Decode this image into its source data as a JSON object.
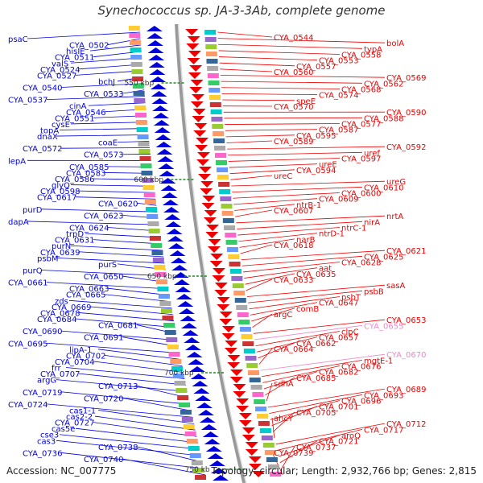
{
  "title": "Synechococcus sp. JA-3-3Ab, complete genome",
  "accession": "Accession: NC_007775",
  "topology": "Topology: circular; Length: 2,932,766 bp; Genes: 2,815",
  "colors": {
    "left_strand": "#0000dd",
    "right_strand": "#ee0000",
    "highlight": "#ee88cc",
    "backbone": "#999999",
    "scale_mark": "#228822"
  },
  "scale_labels": [
    "550 kbp",
    "600 kbp",
    "650 kbp",
    "700 kbp",
    "750 kb"
  ],
  "left_genes": [
    "psaC",
    "CYA_0502",
    "hisIE",
    "CYA_0511",
    "valS",
    "CYA_0524",
    "CYA_0527",
    "bchJ",
    "CYA_0540",
    "CYA_0533",
    "CYA_0537",
    "cinA",
    "CYA_0546",
    "CYA_0551",
    "cysE",
    "topA",
    "dnaX",
    "coaE",
    "CYA_0572",
    "CYA_0573",
    "lepA",
    "CYA_0585",
    "CYA_0583",
    "CYA_0586",
    "glyQ",
    "CYA_0598",
    "CYA_0617",
    "CYA_0620",
    "purD",
    "CYA_0623",
    "dapA",
    "CYA_0624",
    "trpD",
    "CYA_0631",
    "purN",
    "CYA_0639",
    "psbM",
    "purS",
    "purQ",
    "CYA_0650",
    "CYA_0661",
    "CYA_0663",
    "CYA_0665",
    "zds",
    "CYA_0669",
    "CYA_0678",
    "CYA_0684",
    "CYA_0681",
    "CYA_0690",
    "CYA_0691",
    "CYA_0695",
    "lipA-1",
    "CYA_0702",
    "CYA_0704",
    "frr",
    "CYA_0707",
    "argG",
    "CYA_0713",
    "CYA_0719",
    "CYA_0720",
    "CYA_0724",
    "cas1-1",
    "cas2-2",
    "CYA_0727",
    "cas5e",
    "cse3",
    "cas3",
    "CYA_0738",
    "CYA_0736",
    "CYA_0740"
  ],
  "right_genes": [
    "CYA_0544",
    "bolA",
    "typA",
    "CYA_0558",
    "CYA_0553",
    "CYA_0557",
    "CYA_0560",
    "CYA_0569",
    "CYA_0562",
    "CYA_0568",
    "CYA_0574",
    "speE",
    "CYA_0570",
    "CYA_0590",
    "CYA_0588",
    "CYA_0577",
    "CYA_0587",
    "CYA_0595",
    "CYA_0589",
    "CYA_0592",
    "uref",
    "CYA_0597",
    "ureE",
    "CYA_0594",
    "ureC",
    "ureG",
    "CYA_0610",
    "CYA_0600",
    "CYA_0609",
    "ntrB-1",
    "CYA_0607",
    "nrtA",
    "nirA",
    "ntrC-1",
    "ntrD-1",
    "narB",
    "CYA_0618",
    "CYA_0621",
    "CYA_0625",
    "CYA_0628",
    "aat",
    "CYA_0635",
    "CYA_0633",
    "sasA",
    "psbB",
    "psbT",
    "CYA_0647",
    "comB",
    "argC",
    "CYA_0653",
    "CYA_0655",
    "clpC",
    "CYA_0657",
    "CYA_0662",
    "CYA_0664",
    "CYA_0670",
    "mgtE-1",
    "CYA_0676",
    "CYA_0682",
    "CYA_0685",
    "sdhA",
    "CYA_0689",
    "CYA_0693",
    "CYA_0696",
    "CYA_0701",
    "CYA_0705",
    "ahcY",
    "CYA_0712",
    "CYA_0717",
    "aroQ",
    "CYA_0721",
    "CYA_0737",
    "CYA_0739"
  ]
}
